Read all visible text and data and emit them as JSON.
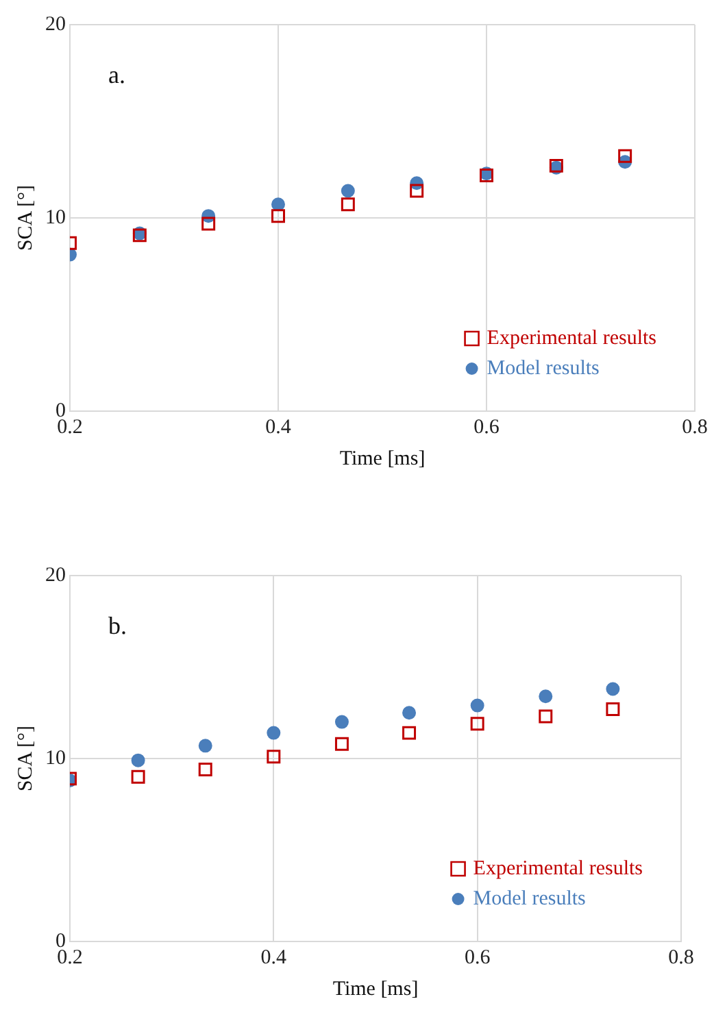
{
  "chart_data": [
    {
      "type": "scatter",
      "xlabel": "Time [ms]",
      "ylabel": "SCA [°]",
      "annotations": [
        "a."
      ],
      "x": [
        0.2,
        0.267,
        0.333,
        0.4,
        0.467,
        0.533,
        0.6,
        0.667,
        0.733
      ],
      "series": [
        {
          "name": "Experimental results",
          "color": "#c00000",
          "marker": "square",
          "values": [
            8.7,
            9.1,
            9.7,
            10.1,
            10.7,
            11.4,
            12.2,
            12.7,
            13.2
          ]
        },
        {
          "name": "Model results",
          "color": "#4a7ebb",
          "marker": "circle",
          "values": [
            8.1,
            9.2,
            10.1,
            10.7,
            11.4,
            11.8,
            12.3,
            12.6,
            12.9
          ]
        }
      ],
      "xlim": [
        0.2,
        0.8
      ],
      "xticks": [
        0.2,
        0.4,
        0.6,
        0.8
      ],
      "ylim": [
        0,
        20
      ],
      "yticks": [
        0,
        10,
        20
      ],
      "grid": true,
      "legend": "bottom right"
    },
    {
      "type": "scatter",
      "xlabel": "Time [ms]",
      "ylabel": "SCA [°]",
      "annotations": [
        "b."
      ],
      "x": [
        0.2,
        0.267,
        0.333,
        0.4,
        0.467,
        0.533,
        0.6,
        0.667,
        0.733
      ],
      "series": [
        {
          "name": "Experimental results",
          "color": "#c00000",
          "marker": "square",
          "values": [
            8.9,
            9.0,
            9.4,
            10.1,
            10.8,
            11.4,
            11.9,
            12.3,
            12.7
          ]
        },
        {
          "name": "Model results",
          "color": "#4a7ebb",
          "marker": "circle",
          "values": [
            8.8,
            9.9,
            10.7,
            11.4,
            12.0,
            12.5,
            12.9,
            13.4,
            13.8
          ]
        }
      ],
      "xlim": [
        0.2,
        0.8
      ],
      "xticks": [
        0.2,
        0.4,
        0.6,
        0.8
      ],
      "ylim": [
        0,
        20
      ],
      "yticks": [
        0,
        10,
        20
      ],
      "grid": true,
      "legend": "bottom right"
    }
  ]
}
